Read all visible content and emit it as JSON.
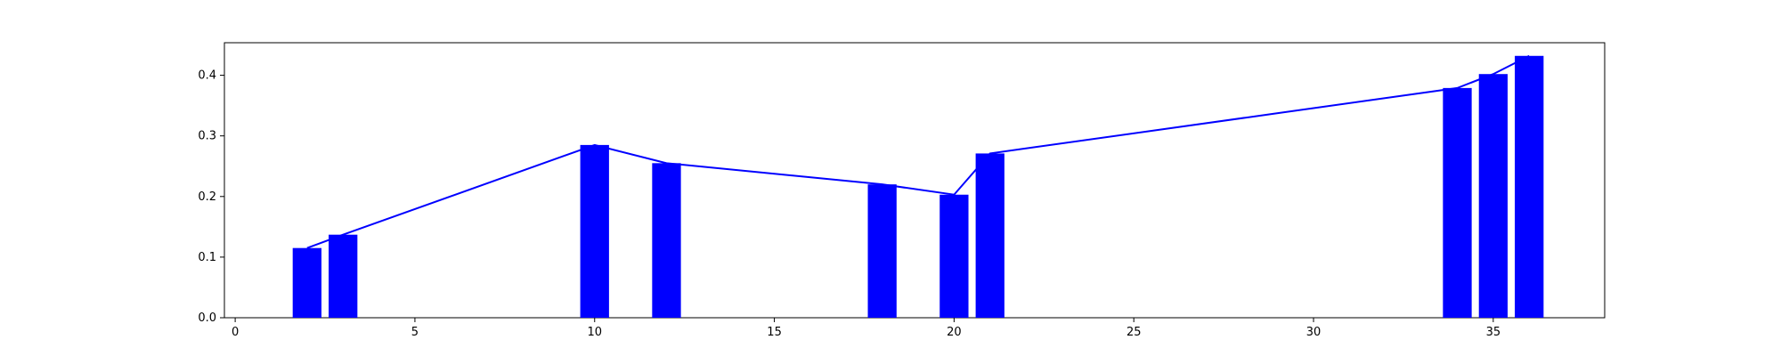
{
  "chart_data": {
    "type": "bar",
    "x": [
      2,
      3,
      10,
      12,
      18,
      20,
      21,
      34,
      35,
      36
    ],
    "values": [
      0.115,
      0.137,
      0.285,
      0.255,
      0.22,
      0.203,
      0.271,
      0.379,
      0.402,
      0.432
    ],
    "overlay": {
      "type": "line",
      "x": [
        2,
        3,
        10,
        12,
        18,
        20,
        21,
        34,
        35,
        36
      ],
      "values": [
        0.115,
        0.137,
        0.285,
        0.255,
        0.22,
        0.203,
        0.271,
        0.379,
        0.402,
        0.432
      ]
    },
    "title": "",
    "xlabel": "",
    "ylabel": "",
    "xlim": [
      -0.3,
      38.1
    ],
    "ylim": [
      0.0,
      0.4537
    ],
    "x_ticks": [
      0,
      5,
      10,
      15,
      20,
      25,
      30,
      35
    ],
    "y_ticks": [
      0.0,
      0.1,
      0.2,
      0.3,
      0.4
    ],
    "x_tick_labels": [
      "0",
      "5",
      "10",
      "15",
      "20",
      "25",
      "30",
      "35"
    ],
    "y_tick_labels": [
      "0.0",
      "0.1",
      "0.2",
      "0.3",
      "0.4"
    ],
    "bar_width": 0.8,
    "grid": false,
    "legend": "none",
    "colors": {
      "bar": "#0000ff",
      "line": "#0000ff",
      "axes": "#000000",
      "background": "#ffffff"
    }
  }
}
